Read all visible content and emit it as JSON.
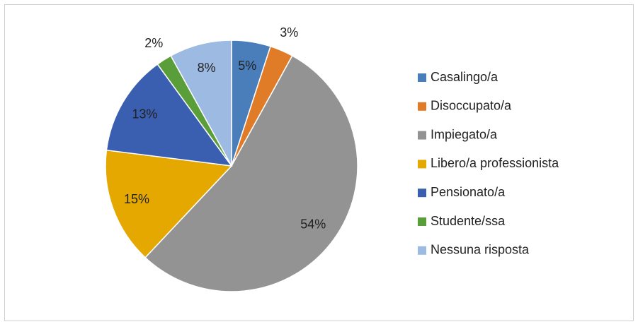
{
  "chart_data": {
    "type": "pie",
    "categories": [
      "Casalingo/a",
      "Disoccupato/a",
      "Impiegato/a",
      "Libero/a professionista",
      "Pensionato/a",
      "Studente/ssa",
      "Nessuna risposta"
    ],
    "values": [
      5,
      3,
      54,
      15,
      13,
      2,
      8
    ],
    "value_labels": [
      "5%",
      "3%",
      "54%",
      "15%",
      "13%",
      "2%",
      "8%"
    ],
    "colors": [
      "#4a7ebb",
      "#e07b27",
      "#939393",
      "#e4a800",
      "#3a5fb0",
      "#5a9e3a",
      "#9dbbe2"
    ],
    "legend": "right"
  }
}
